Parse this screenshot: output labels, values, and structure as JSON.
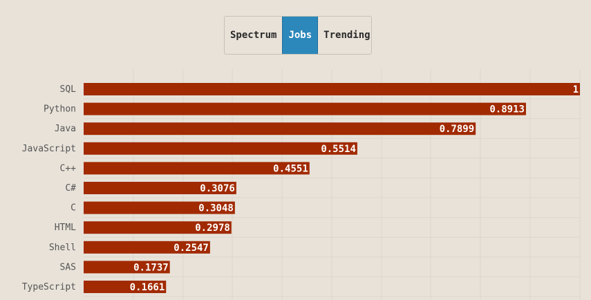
{
  "tabs": [
    {
      "label": "Spectrum",
      "active": false
    },
    {
      "label": "Jobs",
      "active": true
    },
    {
      "label": "Trending",
      "active": false
    }
  ],
  "colors": {
    "bar": "#a12a00",
    "accent": "#2c88ba",
    "grid": "#ddd6cc",
    "background": "#e8e2d9"
  },
  "chart_data": {
    "type": "bar",
    "orientation": "horizontal",
    "categories": [
      "SQL",
      "Python",
      "Java",
      "JavaScript",
      "C++",
      "C#",
      "C",
      "HTML",
      "Shell",
      "SAS",
      "TypeScript"
    ],
    "values": [
      1,
      0.8913,
      0.7899,
      0.5514,
      0.4551,
      0.3076,
      0.3048,
      0.2978,
      0.2547,
      0.1737,
      0.1661
    ],
    "xlim": [
      0,
      1
    ],
    "grid": true
  }
}
